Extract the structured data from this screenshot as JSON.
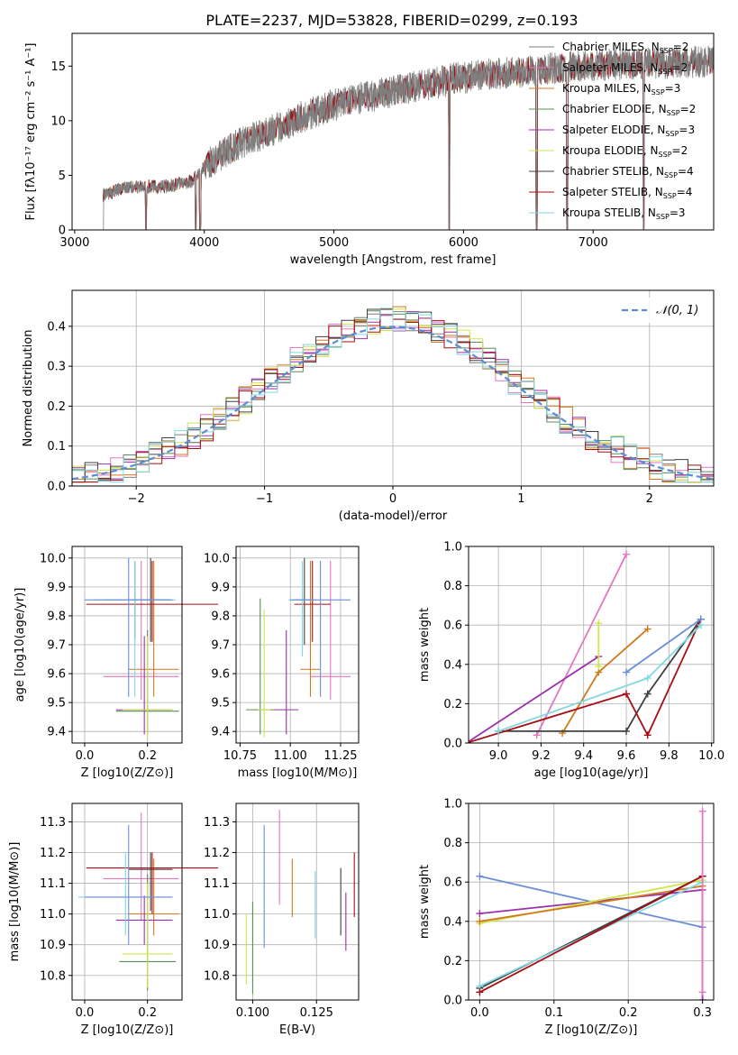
{
  "title": "PLATE=2237, MJD=53828, FIBERID=0299, z=0.193",
  "colors": {
    "Chabrier MILES": "#7f7f7f",
    "Salpeter MILES": "#e377c2",
    "Kroupa MILES": "#d2781c",
    "Chabrier ELODIE": "#5b8c5a",
    "Salpeter ELODIE": "#9b30a8",
    "Kroupa ELODIE": "#cfe64a",
    "Chabrier STELIB": "#404040",
    "Salpeter STELIB": "#a50f15",
    "Kroupa STELIB": "#80d8e0",
    "gaussian": "#5b8dd6",
    "mass_gaussian_blue": "#6a8ed8",
    "grid": "#b0b0b0"
  },
  "legend": [
    {
      "model": "Chabrier MILES",
      "prefix": "Chabrier MILES, N",
      "nssp": "=2"
    },
    {
      "model": "Salpeter MILES",
      "prefix": "Salpeter MILES, N",
      "nssp": "=2"
    },
    {
      "model": "Kroupa MILES",
      "prefix": "Kroupa MILES, N",
      "nssp": "=3"
    },
    {
      "model": "Chabrier ELODIE",
      "prefix": "Chabrier ELODIE, N",
      "nssp": "=2"
    },
    {
      "model": "Salpeter ELODIE",
      "prefix": "Salpeter ELODIE, N",
      "nssp": "=3"
    },
    {
      "model": "Kroupa ELODIE",
      "prefix": "Kroupa ELODIE, N",
      "nssp": "=2"
    },
    {
      "model": "Chabrier STELIB",
      "prefix": "Chabrier STELIB, N",
      "nssp": "=4"
    },
    {
      "model": "Salpeter STELIB",
      "prefix": "Salpeter STELIB, N",
      "nssp": "=4"
    },
    {
      "model": "Kroupa STELIB",
      "prefix": "Kroupa STELIB, N",
      "nssp": "=3"
    }
  ],
  "chart_data": [
    {
      "id": "spectrum",
      "type": "line",
      "xlabel": "wavelength [Angstrom, rest frame]",
      "ylabel": "Flux [fλ10⁻¹⁷ erg cm⁻² s⁻¹ A⁻¹]",
      "xlim": [
        2980,
        7930
      ],
      "ylim": [
        0,
        18
      ],
      "xticks": [
        3000,
        4000,
        5000,
        6000,
        7000
      ],
      "yticks": [
        0,
        5,
        10,
        15
      ],
      "spectrum_start": 3220,
      "spectrum_end": 7930,
      "flux_trend": [
        {
          "x": 3220,
          "y": 3.2
        },
        {
          "x": 3400,
          "y": 3.9
        },
        {
          "x": 3700,
          "y": 4.0
        },
        {
          "x": 3900,
          "y": 4.4
        },
        {
          "x": 4000,
          "y": 5.8
        },
        {
          "x": 4200,
          "y": 7.5
        },
        {
          "x": 4500,
          "y": 9.0
        },
        {
          "x": 4800,
          "y": 10.6
        },
        {
          "x": 5100,
          "y": 11.8
        },
        {
          "x": 5500,
          "y": 12.8
        },
        {
          "x": 6000,
          "y": 14.0
        },
        {
          "x": 6500,
          "y": 14.6
        },
        {
          "x": 7000,
          "y": 15.1
        },
        {
          "x": 7500,
          "y": 15.3
        },
        {
          "x": 7930,
          "y": 15.4
        }
      ],
      "absorption_lines": [
        3550,
        3934,
        3969,
        5890,
        6563,
        6800,
        7390
      ]
    },
    {
      "id": "residuals",
      "type": "step-histogram",
      "xlabel": "(data-model)/error",
      "ylabel": "Normed distribution",
      "xlim": [
        -2.5,
        2.5
      ],
      "ylim": [
        0,
        0.49
      ],
      "xticks": [
        -2,
        -1,
        0,
        1,
        2
      ],
      "yticks": [
        0.0,
        0.1,
        0.2,
        0.3,
        0.4
      ],
      "bin_width": 0.1,
      "curve_label": "𝒩(0, 1)",
      "curve": "normal(0,1)"
    },
    {
      "id": "z-age",
      "type": "errorbar",
      "xlabel": "Z [log10(Z/Z⊙)]",
      "ylabel": "age  [log10(age/yr)]",
      "xlim": [
        -0.04,
        0.31
      ],
      "ylim": [
        9.36,
        10.04
      ],
      "xticks": [
        0.0,
        0.2
      ],
      "yticks": [
        9.4,
        9.5,
        9.6,
        9.7,
        9.8,
        9.9,
        10.0
      ],
      "points": [
        {
          "model": "Chabrier MILES",
          "x": 0.16,
          "xerr": 0.1,
          "y": 9.855,
          "ylo": 9.72,
          "yhi": 9.99
        },
        {
          "model": "Salpeter MILES",
          "x": 0.18,
          "xerr": 0.12,
          "y": 9.59,
          "ylo": 9.51,
          "yhi": 9.99
        },
        {
          "model": "Kroupa MILES",
          "x": 0.22,
          "xerr": 0.08,
          "y": 9.615,
          "ylo": 9.52,
          "yhi": 9.99
        },
        {
          "model": "Chabrier ELODIE",
          "x": 0.2,
          "xerr": 0.1,
          "y": 9.47,
          "ylo": 9.39,
          "yhi": 9.75
        },
        {
          "model": "Salpeter ELODIE",
          "x": 0.19,
          "xerr": 0.09,
          "y": 9.475,
          "ylo": 9.39,
          "yhi": 9.73
        },
        {
          "model": "Kroupa ELODIE",
          "x": 0.2,
          "xerr": 0.08,
          "y": 9.475,
          "ylo": 9.38,
          "yhi": 9.73
        },
        {
          "model": "Chabrier STELIB",
          "x": 0.21,
          "xerr": 0.06,
          "y": 9.855,
          "ylo": 9.71,
          "yhi": 10.0
        },
        {
          "model": "Salpeter STELIB",
          "x": 0.215,
          "xerr": 0.21,
          "y": 9.84,
          "ylo": 9.71,
          "yhi": 9.99
        },
        {
          "model": "Kroupa STELIB",
          "x": 0.16,
          "xerr": 0.13,
          "y": 9.855,
          "ylo": 9.52,
          "yhi": 9.99
        },
        {
          "model": "mass_gaussian_blue",
          "x": 0.14,
          "xerr": 0.14,
          "y": 9.855,
          "ylo": 9.52,
          "yhi": 10.0
        }
      ]
    },
    {
      "id": "mass-age",
      "type": "errorbar",
      "xlabel": "mass [log10(M/M⊙)]",
      "ylabel": "",
      "xlim": [
        10.73,
        11.34
      ],
      "ylim": [
        9.36,
        10.04
      ],
      "xticks": [
        10.75,
        11.0,
        11.25
      ],
      "yticks": [
        9.4,
        9.5,
        9.6,
        9.7,
        9.8,
        9.9,
        10.0
      ],
      "points": [
        {
          "model": "Salpeter MILES",
          "x": 11.2,
          "xerr": 0.1,
          "y": 9.59,
          "ylo": 9.51,
          "yhi": 9.99
        },
        {
          "model": "Kroupa MILES",
          "x": 11.1,
          "xerr": 0.05,
          "y": 9.615,
          "ylo": 9.52,
          "yhi": 9.99
        },
        {
          "model": "Chabrier ELODIE",
          "x": 10.85,
          "xerr": 0.07,
          "y": 9.475,
          "ylo": 9.39,
          "yhi": 9.86
        },
        {
          "model": "Salpeter ELODIE",
          "x": 10.98,
          "xerr": 0.06,
          "y": 9.475,
          "ylo": 9.39,
          "yhi": 9.75
        },
        {
          "model": "Kroupa ELODIE",
          "x": 10.87,
          "xerr": 0.03,
          "y": 9.475,
          "ylo": 9.38,
          "yhi": 9.82
        },
        {
          "model": "Chabrier STELIB",
          "x": 11.07,
          "xerr": 0.05,
          "y": 9.855,
          "ylo": 9.7,
          "yhi": 10.0
        },
        {
          "model": "Salpeter STELIB",
          "x": 11.11,
          "xerr": 0.09,
          "y": 9.84,
          "ylo": 9.71,
          "yhi": 9.99
        },
        {
          "model": "Kroupa STELIB",
          "x": 11.06,
          "xerr": 0.07,
          "y": 9.855,
          "ylo": 9.66,
          "yhi": 9.99
        },
        {
          "model": "mass_gaussian_blue",
          "x": 11.15,
          "xerr": 0.15,
          "y": 9.855,
          "ylo": 9.52,
          "yhi": 9.99
        }
      ]
    },
    {
      "id": "age-weight",
      "type": "line",
      "xlabel": "age  [log10(age/yr)]",
      "ylabel": "mass weight",
      "xlim": [
        8.86,
        10.01
      ],
      "ylim": [
        0,
        1.0
      ],
      "xticks": [
        9.0,
        9.2,
        9.4,
        9.6,
        9.8,
        10.0
      ],
      "yticks": [
        0.0,
        0.2,
        0.4,
        0.6,
        0.8,
        1.0
      ],
      "series": [
        {
          "model": "Salpeter MILES",
          "x": [
            9.18,
            9.6
          ],
          "y": [
            0.04,
            0.96
          ]
        },
        {
          "model": "Kroupa MILES",
          "x": [
            9.3,
            9.47,
            9.7
          ],
          "y": [
            0.05,
            0.36,
            0.58
          ]
        },
        {
          "model": "Salpeter ELODIE",
          "x": [
            8.85,
            9.47
          ],
          "y": [
            0.0,
            0.44
          ]
        },
        {
          "model": "Kroupa ELODIE",
          "x": [
            9.47,
            9.47
          ],
          "y": [
            0.39,
            0.61
          ]
        },
        {
          "model": "Chabrier STELIB",
          "x": [
            9.0,
            9.6,
            9.7,
            9.95
          ],
          "y": [
            0.06,
            0.06,
            0.25,
            0.63
          ]
        },
        {
          "model": "Salpeter STELIB",
          "x": [
            8.85,
            9.6,
            9.7,
            9.95
          ],
          "y": [
            0.0,
            0.25,
            0.04,
            0.63
          ]
        },
        {
          "model": "Kroupa STELIB",
          "x": [
            9.0,
            9.7,
            9.95
          ],
          "y": [
            0.06,
            0.33,
            0.6
          ]
        },
        {
          "model": "mass_gaussian_blue",
          "x": [
            9.6,
            9.95
          ],
          "y": [
            0.36,
            0.63
          ]
        }
      ]
    },
    {
      "id": "z-mass",
      "type": "errorbar",
      "xlabel": "Z [log10(Z/Z⊙)]",
      "ylabel": "mass [log10(M/M⊙)]",
      "xlim": [
        -0.04,
        0.31
      ],
      "ylim": [
        10.72,
        11.36
      ],
      "xticks": [
        0.0,
        0.2
      ],
      "yticks": [
        10.8,
        10.9,
        11.0,
        11.1,
        11.2,
        11.3
      ],
      "points": [
        {
          "model": "Salpeter MILES",
          "x": 0.18,
          "xerr": 0.12,
          "y": 11.115,
          "ylo": 10.98,
          "yhi": 11.33
        },
        {
          "model": "Kroupa MILES",
          "x": 0.22,
          "xerr": 0.08,
          "y": 11.0,
          "ylo": 10.93,
          "yhi": 11.18
        },
        {
          "model": "Chabrier ELODIE",
          "x": 0.2,
          "xerr": 0.09,
          "y": 10.845,
          "ylo": 10.75,
          "yhi": 11.13
        },
        {
          "model": "Salpeter ELODIE",
          "x": 0.19,
          "xerr": 0.09,
          "y": 10.98,
          "ylo": 10.9,
          "yhi": 11.06
        },
        {
          "model": "Kroupa ELODIE",
          "x": 0.2,
          "xerr": 0.08,
          "y": 10.87,
          "ylo": 10.76,
          "yhi": 11.1
        },
        {
          "model": "Chabrier STELIB",
          "x": 0.21,
          "xerr": 0.07,
          "y": 11.145,
          "ylo": 11.01,
          "yhi": 11.2
        },
        {
          "model": "Salpeter STELIB",
          "x": 0.215,
          "xerr": 0.21,
          "y": 11.15,
          "ylo": 11.0,
          "yhi": 11.2
        },
        {
          "model": "Kroupa STELIB",
          "x": 0.13,
          "xerr": 0.15,
          "y": 11.055,
          "ylo": 10.93,
          "yhi": 11.2
        },
        {
          "model": "mass_gaussian_blue",
          "x": 0.14,
          "xerr": 0.14,
          "y": 11.055,
          "ylo": 10.9,
          "yhi": 11.29
        }
      ]
    },
    {
      "id": "ebv-mass",
      "type": "errorbar",
      "xlabel": "E(B-V)",
      "ylabel": "",
      "xlim": [
        0.0935,
        0.1415
      ],
      "ylim": [
        10.72,
        11.36
      ],
      "xticks": [
        0.1,
        0.125
      ],
      "yticks": [
        10.8,
        10.9,
        11.0,
        11.1,
        11.2,
        11.3
      ],
      "points": [
        {
          "model": "Chabrier ELODIE",
          "x": 0.1,
          "ylo": 10.74,
          "yhi": 11.04
        },
        {
          "model": "Kroupa ELODIE",
          "x": 0.0975,
          "ylo": 10.77,
          "yhi": 11.0
        },
        {
          "model": "mass_gaussian_blue",
          "x": 0.1045,
          "ylo": 10.89,
          "yhi": 11.29
        },
        {
          "model": "Salpeter MILES",
          "x": 0.1105,
          "ylo": 11.03,
          "yhi": 11.34
        },
        {
          "model": "Kroupa MILES",
          "x": 0.1155,
          "ylo": 10.99,
          "yhi": 11.18
        },
        {
          "model": "Kroupa STELIB",
          "x": 0.1245,
          "ylo": 10.92,
          "yhi": 11.14
        },
        {
          "model": "Chabrier STELIB",
          "x": 0.1345,
          "ylo": 10.93,
          "yhi": 11.15
        },
        {
          "model": "Salpeter ELODIE",
          "x": 0.1365,
          "ylo": 10.88,
          "yhi": 11.07
        },
        {
          "model": "Salpeter STELIB",
          "x": 0.1398,
          "ylo": 10.99,
          "yhi": 11.2
        }
      ]
    },
    {
      "id": "z-weight",
      "type": "line",
      "xlabel": "Z [log10(Z/Z⊙)]",
      "ylabel": "mass weight",
      "xlim": [
        -0.015,
        0.315
      ],
      "ylim": [
        0,
        1.0
      ],
      "xticks": [
        0.0,
        0.1,
        0.2,
        0.3
      ],
      "yticks": [
        0.0,
        0.2,
        0.4,
        0.6,
        0.8,
        1.0
      ],
      "series": [
        {
          "model": "mass_gaussian_blue",
          "x": [
            0.0,
            0.3
          ],
          "y": [
            0.63,
            0.37
          ]
        },
        {
          "model": "Salpeter ELODIE",
          "x": [
            0.0,
            0.3,
            0.3
          ],
          "y": [
            0.44,
            0.56,
            0.0
          ]
        },
        {
          "model": "Kroupa ELODIE",
          "x": [
            0.0,
            0.3
          ],
          "y": [
            0.39,
            0.61
          ]
        },
        {
          "model": "Kroupa MILES",
          "x": [
            0.0,
            0.3
          ],
          "y": [
            0.4,
            0.58
          ]
        },
        {
          "model": "Chabrier STELIB",
          "x": [
            0.0,
            0.3
          ],
          "y": [
            0.06,
            0.63
          ]
        },
        {
          "model": "Kroupa STELIB",
          "x": [
            0.0,
            0.3
          ],
          "y": [
            0.07,
            0.6
          ]
        },
        {
          "model": "Salpeter STELIB",
          "x": [
            0.0,
            0.3
          ],
          "y": [
            0.04,
            0.63
          ]
        },
        {
          "model": "Salpeter MILES",
          "x": [
            0.3,
            0.3
          ],
          "y": [
            0.04,
            0.96
          ]
        }
      ]
    }
  ]
}
